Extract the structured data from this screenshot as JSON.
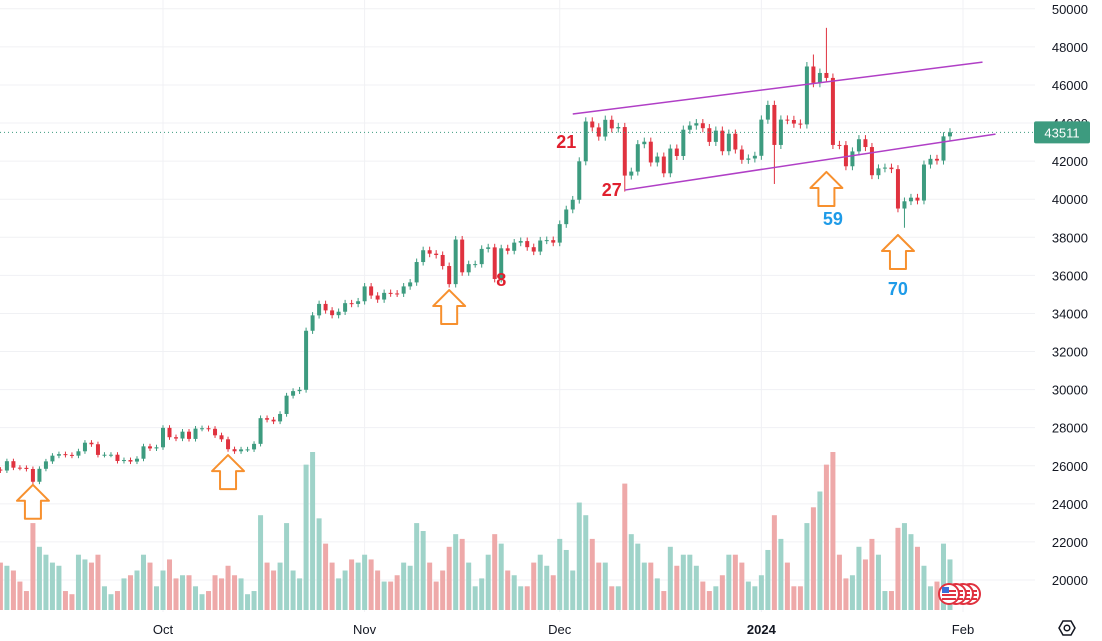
{
  "chart_data": {
    "type": "candlestick",
    "title": "",
    "start_date": "2023-09-06",
    "first_open": 25800,
    "close": [
      25750,
      26240,
      25900,
      25890,
      25830,
      25160,
      25840,
      26230,
      26530,
      26610,
      26570,
      26530,
      26760,
      27210,
      27130,
      26570,
      26580,
      26580,
      26250,
      26300,
      26220,
      26370,
      27020,
      26910,
      26970,
      27990,
      27500,
      27430,
      27790,
      27410,
      27950,
      27970,
      27940,
      27600,
      27390,
      26870,
      26760,
      26860,
      26860,
      27150,
      28500,
      28420,
      28330,
      28720,
      29680,
      29920,
      29990,
      33090,
      33900,
      34500,
      34160,
      33910,
      34090,
      34540,
      34500,
      34640,
      35420,
      34940,
      34730,
      35080,
      35050,
      35040,
      35420,
      35630,
      36700,
      37320,
      37140,
      37070,
      36490,
      35540,
      37880,
      36160,
      36590,
      36590,
      37390,
      37470,
      35810,
      37420,
      37290,
      37720,
      37800,
      37480,
      37250,
      37830,
      37850,
      37720,
      38690,
      39460,
      39970,
      41990,
      44080,
      43770,
      43290,
      44170,
      43720,
      43790,
      41240,
      41450,
      42890,
      43020,
      41930,
      42240,
      41360,
      42660,
      42270,
      43650,
      43870,
      43990,
      43730,
      43010,
      43600,
      42520,
      43440,
      42610,
      42070,
      42140,
      42280,
      44180,
      44950,
      42850,
      44180,
      44160,
      43970,
      43930,
      46970,
      46110,
      46630,
      46370,
      42850,
      42840,
      41730,
      42510,
      43150,
      42740,
      41260,
      41620,
      41660,
      41580,
      39510,
      39890,
      40080,
      39930,
      41820,
      42120,
      42030,
      43300,
      43510
    ],
    "volume_relative": [
      30,
      28,
      25,
      18,
      12,
      55,
      40,
      35,
      30,
      28,
      12,
      10,
      35,
      32,
      30,
      35,
      15,
      10,
      12,
      20,
      22,
      25,
      35,
      30,
      15,
      25,
      32,
      20,
      22,
      22,
      15,
      10,
      12,
      22,
      20,
      28,
      22,
      20,
      10,
      12,
      60,
      30,
      25,
      30,
      55,
      25,
      20,
      92,
      100,
      58,
      42,
      30,
      20,
      25,
      32,
      30,
      35,
      32,
      25,
      18,
      18,
      22,
      30,
      28,
      55,
      50,
      30,
      18,
      25,
      40,
      48,
      45,
      30,
      15,
      20,
      35,
      48,
      42,
      25,
      22,
      15,
      15,
      30,
      35,
      28,
      22,
      45,
      38,
      25,
      68,
      60,
      45,
      30,
      30,
      15,
      15,
      80,
      48,
      42,
      30,
      30,
      20,
      12,
      40,
      28,
      35,
      35,
      28,
      18,
      12,
      15,
      22,
      35,
      35,
      30,
      18,
      15,
      22,
      38,
      60,
      45,
      30,
      15,
      15,
      55,
      65,
      75,
      92,
      100,
      35,
      20,
      22,
      40,
      32,
      45,
      35,
      12,
      12,
      52,
      55,
      48,
      40,
      28,
      15,
      18,
      42,
      32
    ],
    "wick_overrides": {
      "2024-01-11": {
        "high": 49000
      },
      "2024-01-03": {
        "low": 40800
      },
      "2024-01-23": {
        "low": 38500
      },
      "2023-12-11": {
        "low": 40400
      },
      "2024-01-09": {
        "high": 47600
      }
    },
    "ylim": [
      19000,
      50000
    ],
    "y_ticks": [
      20000,
      22000,
      24000,
      26000,
      28000,
      30000,
      32000,
      34000,
      36000,
      38000,
      40000,
      42000,
      44000,
      46000,
      48000,
      50000
    ],
    "x_ticks": [
      {
        "date": "2023-10-01",
        "label": "Oct"
      },
      {
        "date": "2023-11-01",
        "label": "Nov"
      },
      {
        "date": "2023-12-01",
        "label": "Dec"
      },
      {
        "date": "2024-01-01",
        "label": "2024",
        "bold": true
      },
      {
        "date": "2024-02-01",
        "label": "Feb"
      }
    ],
    "last_price": {
      "value": 43511,
      "label": "43511"
    },
    "trend_lines": [
      {
        "name": "channel-upper",
        "from": {
          "date": "2023-12-03",
          "price": 44475
        },
        "to": {
          "date": "2024-02-04",
          "price": 47200
        }
      },
      {
        "name": "channel-lower",
        "from": {
          "date": "2023-12-11",
          "price": 40480
        },
        "to": {
          "date": "2024-02-06",
          "price": 43420
        }
      }
    ],
    "arrows": [
      {
        "date": "2023-09-11",
        "price": 25000
      },
      {
        "date": "2023-10-11",
        "price": 26560
      },
      {
        "date": "2023-11-14",
        "price": 35230
      },
      {
        "date": "2024-01-11",
        "price": 41430
      },
      {
        "date": "2024-01-22",
        "price": 38120
      }
    ],
    "annotations": [
      {
        "text": "21",
        "date": "2023-12-02",
        "price": 42690,
        "color": "#e0202e"
      },
      {
        "text": "27",
        "date": "2023-12-09",
        "price": 40170,
        "color": "#e0202e"
      },
      {
        "text": "8",
        "date": "2023-11-22",
        "price": 35440,
        "color": "#e0202e"
      },
      {
        "text": "59",
        "date": "2024-01-12",
        "price": 38650,
        "color": "#1e9be8"
      },
      {
        "text": "70",
        "date": "2024-01-22",
        "price": 34970,
        "color": "#1e9be8"
      }
    ],
    "colors": {
      "up": "#3d9b7f",
      "down": "#e0323f",
      "vol_up": "#9fd3c9",
      "vol_down": "#eea9a9",
      "channel": "#b03fc6",
      "arrow": "#f7902e",
      "price_label": "#3d9b7f"
    }
  },
  "icons": {
    "events": "us-flag-event-icon",
    "settings": "settings-hexagon-icon"
  }
}
